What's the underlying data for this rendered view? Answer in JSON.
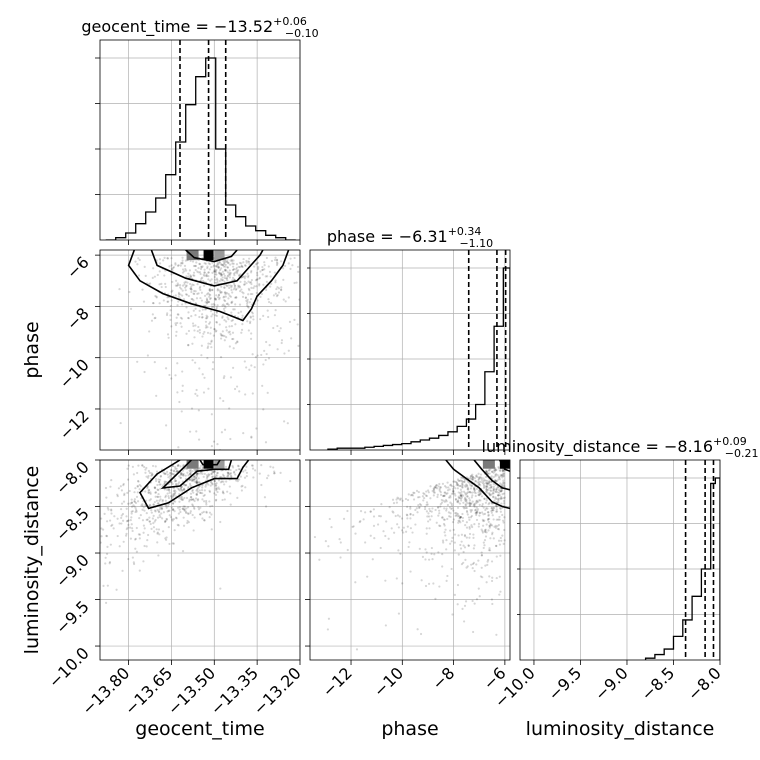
{
  "chart_data": {
    "type": "corner",
    "parameters": [
      "geocent_time",
      "phase",
      "luminosity_distance"
    ],
    "grid": true,
    "diagonal": [
      {
        "parameter": "geocent_time",
        "title": {
          "prefix": "geocent_time = ",
          "value": "−13.52",
          "upper": "+0.06",
          "lower": "−0.10"
        },
        "xlim": [
          -13.9,
          -13.2
        ],
        "bin_edges": [
          -13.88,
          -13.845,
          -13.81,
          -13.775,
          -13.74,
          -13.705,
          -13.67,
          -13.635,
          -13.6,
          -13.565,
          -13.53,
          -13.495,
          -13.46,
          -13.425,
          -13.39,
          -13.355,
          -13.32,
          -13.285,
          -13.25,
          -13.215
        ],
        "counts": [
          0,
          1,
          3,
          7,
          12,
          18,
          28,
          42,
          58,
          70,
          78,
          39,
          15,
          10,
          6,
          4,
          2,
          1,
          0
        ],
        "quantiles": [
          -13.62,
          -13.52,
          -13.46
        ],
        "ticks": [
          -13.8,
          -13.65,
          -13.5,
          -13.35,
          -13.2
        ],
        "tick_labels": [
          "−13.80",
          "−13.65",
          "−13.50",
          "−13.35",
          "−13.20"
        ]
      },
      {
        "parameter": "phase",
        "title": {
          "prefix": "phase = ",
          "value": "−6.31",
          "upper": "+0.34",
          "lower": "−1.10"
        },
        "xlim": [
          -13.6,
          -5.8
        ],
        "bin_edges": [
          -12.9,
          -12.54,
          -12.18,
          -11.82,
          -11.46,
          -11.1,
          -10.74,
          -10.38,
          -10.02,
          -9.66,
          -9.3,
          -8.94,
          -8.58,
          -8.22,
          -7.86,
          -7.5,
          -7.14,
          -6.78,
          -6.42,
          -6.06,
          -5.8
        ],
        "counts": [
          0.5,
          1,
          1,
          1,
          1.5,
          2,
          2.5,
          3,
          3.5,
          4.5,
          5.5,
          6.5,
          8,
          10,
          13,
          17,
          25,
          43,
          68,
          100
        ],
        "quantiles": [
          -7.41,
          -6.31,
          -5.97
        ],
        "ticks": [
          -12,
          -10,
          -8,
          -6
        ],
        "tick_labels": [
          "−12",
          "−10",
          "−8",
          "−6"
        ]
      },
      {
        "parameter": "luminosity_distance",
        "title": {
          "prefix": "luminosity_distance = ",
          "value": "−8.16",
          "upper": "+0.09",
          "lower": "−0.21"
        },
        "xlim": [
          -10.15,
          -8.0
        ],
        "bin_edges": [
          -8.8,
          -8.7,
          -8.6,
          -8.5,
          -8.4,
          -8.3,
          -8.2,
          -8.1,
          -8.05,
          -8.0
        ],
        "counts": [
          1,
          3,
          6,
          13,
          22,
          35,
          50,
          97,
          100
        ],
        "quantiles": [
          -8.37,
          -8.16,
          -8.07
        ],
        "ticks": [
          -10.0,
          -9.5,
          -9.0,
          -8.5,
          -8.0
        ],
        "tick_labels": [
          "−10.0",
          "−9.5",
          "−9.0",
          "−8.5",
          "−8.0"
        ]
      }
    ],
    "y_axes": [
      {
        "parameter": "phase",
        "ylim": [
          -13.6,
          -5.8
        ],
        "ticks": [
          -12,
          -10,
          -8,
          -6
        ],
        "tick_labels": [
          "−12",
          "−10",
          "−8",
          "−6"
        ]
      },
      {
        "parameter": "luminosity_distance",
        "ylim": [
          -10.15,
          -8.0
        ],
        "ticks": [
          -10.0,
          -9.5,
          -9.0,
          -8.5,
          -8.0
        ],
        "tick_labels": [
          "−10.0",
          "−9.5",
          "−9.0",
          "−8.5",
          "−8.0"
        ]
      }
    ],
    "panels_2d": [
      {
        "x": "geocent_time",
        "y": "phase",
        "density_peak": [
          -13.52,
          -6.0
        ],
        "contours": [
          [
            [
              -13.78,
              -5.8
            ],
            [
              -13.8,
              -6.4
            ],
            [
              -13.76,
              -7.0
            ],
            [
              -13.68,
              -7.5
            ],
            [
              -13.58,
              -7.9
            ],
            [
              -13.48,
              -8.2
            ],
            [
              -13.4,
              -8.55
            ],
            [
              -13.37,
              -8.1
            ],
            [
              -13.35,
              -7.6
            ],
            [
              -13.3,
              -7.0
            ],
            [
              -13.26,
              -6.4
            ],
            [
              -13.24,
              -5.8
            ]
          ],
          [
            [
              -13.72,
              -5.8
            ],
            [
              -13.7,
              -6.4
            ],
            [
              -13.6,
              -6.9
            ],
            [
              -13.5,
              -7.2
            ],
            [
              -13.42,
              -7.0
            ],
            [
              -13.38,
              -6.5
            ],
            [
              -13.34,
              -6.0
            ],
            [
              -13.33,
              -5.8
            ]
          ],
          [
            [
              -13.6,
              -5.8
            ],
            [
              -13.57,
              -6.1
            ],
            [
              -13.5,
              -6.25
            ],
            [
              -13.44,
              -6.05
            ],
            [
              -13.42,
              -5.8
            ]
          ]
        ],
        "scatter": {
          "count": 900,
          "x_center": -13.48,
          "x_spread": 0.12,
          "y_mode": -6.1,
          "y_tail": 1.6,
          "seed": 7
        }
      },
      {
        "x": "geocent_time",
        "y": "luminosity_distance",
        "density_peak": [
          -13.52,
          -8.04
        ],
        "contours": [
          [
            [
              -13.62,
              -8.0
            ],
            [
              -13.7,
              -8.15
            ],
            [
              -13.76,
              -8.35
            ],
            [
              -13.73,
              -8.52
            ],
            [
              -13.66,
              -8.46
            ],
            [
              -13.58,
              -8.3
            ],
            [
              -13.5,
              -8.2
            ],
            [
              -13.42,
              -8.2
            ],
            [
              -13.4,
              -8.08
            ],
            [
              -13.38,
              -8.0
            ]
          ],
          [
            [
              -13.58,
              -8.0
            ],
            [
              -13.62,
              -8.12
            ],
            [
              -13.68,
              -8.3
            ],
            [
              -13.62,
              -8.28
            ],
            [
              -13.56,
              -8.12
            ],
            [
              -13.5,
              -8.1
            ],
            [
              -13.45,
              -8.1
            ],
            [
              -13.44,
              -8.0
            ]
          ],
          [
            [
              -13.55,
              -8.0
            ],
            [
              -13.54,
              -8.05
            ],
            [
              -13.49,
              -8.05
            ],
            [
              -13.48,
              -8.0
            ]
          ]
        ],
        "scatter": {
          "count": 900,
          "x_center": -13.52,
          "x_spread": 0.11,
          "y_mode": -8.05,
          "y_tail": 0.35,
          "seed": 11
        }
      },
      {
        "x": "phase",
        "y": "luminosity_distance",
        "density_peak": [
          -6.0,
          -8.04
        ],
        "contours": [
          [
            [
              -8.3,
              -8.0
            ],
            [
              -8.0,
              -8.1
            ],
            [
              -7.5,
              -8.2
            ],
            [
              -7.0,
              -8.3
            ],
            [
              -6.5,
              -8.45
            ],
            [
              -6.1,
              -8.5
            ],
            [
              -5.8,
              -8.52
            ]
          ],
          [
            [
              -7.2,
              -8.0
            ],
            [
              -6.9,
              -8.1
            ],
            [
              -6.5,
              -8.22
            ],
            [
              -6.1,
              -8.3
            ],
            [
              -5.8,
              -8.32
            ]
          ],
          [
            [
              -6.2,
              -8.0
            ],
            [
              -6.0,
              -8.1
            ],
            [
              -5.8,
              -8.12
            ]
          ]
        ],
        "scatter": {
          "count": 900,
          "x_mode": -6.0,
          "x_tail": 1.5,
          "y_mode": -8.05,
          "y_tail": 0.3,
          "seed": 23
        }
      }
    ]
  }
}
